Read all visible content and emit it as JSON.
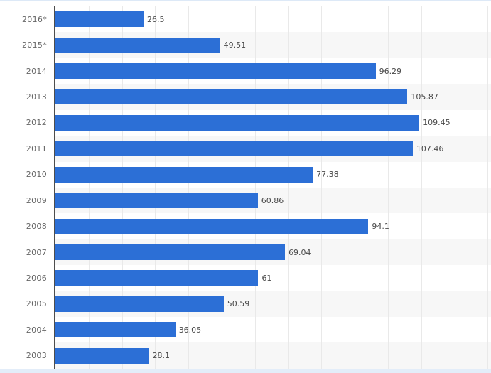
{
  "chart_data": {
    "type": "bar",
    "orientation": "horizontal",
    "title": "",
    "xlabel": "",
    "ylabel": "",
    "categories": [
      "2016*",
      "2015*",
      "2014",
      "2013",
      "2012",
      "2011",
      "2010",
      "2009",
      "2008",
      "2007",
      "2006",
      "2005",
      "2004",
      "2003"
    ],
    "values": [
      26.5,
      49.51,
      96.29,
      105.87,
      109.45,
      107.46,
      77.38,
      60.86,
      94.1,
      69.04,
      61,
      50.59,
      36.05,
      28.1
    ],
    "value_labels": [
      "26.5",
      "49.51",
      "96.29",
      "105.87",
      "109.45",
      "107.46",
      "77.38",
      "60.86",
      "94.1",
      "69.04",
      "61",
      "50.59",
      "36.05",
      "28.1"
    ],
    "xlim": [
      0,
      131
    ],
    "gridline_interval": 10,
    "grid": "on",
    "legend": "none",
    "colors": {
      "bar": "#2c6fd6",
      "alt_row_band": "#f7f7f7",
      "gridline": "#e9e9e9",
      "axis_line": "#4d4d4d",
      "year_label": "#666666",
      "value_label": "#4a4a4a",
      "top_border": "#dde9f7",
      "bottom_bar": "#e3edf9"
    }
  }
}
